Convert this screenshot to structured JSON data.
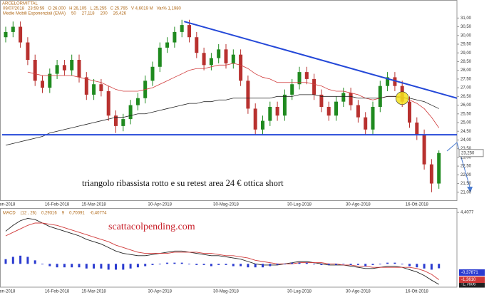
{
  "chart_data": [
    {
      "type": "candlestick",
      "title": "ARCELORMITTAL",
      "info": [
        "09/07/2018",
        "23:59:59",
        "O 26,000",
        "H 26,105",
        "L 25,255",
        "C 25,765",
        "V 4,6019 M",
        "Var% 1,1980"
      ],
      "indicator": "Medie Mobili Esponenziali (EMA)",
      "annotation": "triangolo ribassista rotto e su retest area 24 € ottica short",
      "categories": [
        "Gen-2018",
        null,
        null,
        null,
        null,
        null,
        null,
        "16-Feb-2018",
        null,
        null,
        null,
        null,
        "15-Mar-2018",
        null,
        null,
        null,
        null,
        null,
        null,
        null,
        null,
        "30-Apr-2018",
        null,
        null,
        null,
        null,
        null,
        null,
        null,
        null,
        "30-Mag-2018",
        null,
        null,
        null,
        null,
        null,
        null,
        null,
        null,
        null,
        "30-Lug-2018",
        null,
        null,
        null,
        null,
        null,
        null,
        null,
        "30-Ago-2018",
        null,
        null,
        null,
        null,
        null,
        null,
        null,
        "16-Ott-2018",
        null,
        null,
        null
      ],
      "open": [
        29.9,
        30.2,
        30.5,
        29.6,
        28.6,
        27.4,
        27.0,
        27.8,
        28.3,
        28.0,
        28.6,
        27.6,
        26.6,
        27.2,
        26.8,
        25.4,
        24.8,
        25.2,
        26.0,
        26.4,
        27.4,
        28.2,
        29.3,
        29.6,
        30.2,
        30.6,
        29.9,
        29.0,
        28.3,
        28.7,
        29.2,
        28.4,
        28.9,
        27.4,
        25.8,
        24.6,
        25.1,
        25.9,
        25.4,
        26.6,
        27.2,
        27.9,
        27.5,
        26.6,
        25.9,
        25.4,
        26.2,
        26.7,
        26.0,
        25.3,
        24.6,
        25.9,
        27.1,
        27.6,
        27.1,
        26.2,
        25.0,
        24.3,
        22.6,
        21.5
      ],
      "high": [
        30.5,
        30.8,
        30.8,
        29.9,
        28.9,
        27.7,
        28.1,
        28.6,
        28.6,
        28.9,
        28.9,
        27.9,
        27.5,
        27.5,
        27.1,
        25.7,
        25.5,
        26.3,
        26.7,
        27.7,
        28.5,
        29.6,
        29.9,
        30.5,
        30.9,
        30.9,
        30.2,
        29.3,
        29.0,
        29.5,
        29.5,
        29.2,
        29.2,
        27.7,
        26.1,
        25.4,
        26.2,
        26.2,
        26.9,
        27.5,
        28.2,
        28.2,
        27.8,
        26.9,
        26.2,
        26.5,
        27.0,
        27.0,
        26.3,
        25.6,
        26.2,
        27.4,
        27.9,
        27.9,
        27.4,
        26.5,
        25.3,
        24.6,
        22.9,
        23.4
      ],
      "low": [
        29.6,
        29.9,
        29.3,
        28.3,
        27.1,
        26.7,
        26.7,
        27.5,
        27.7,
        27.7,
        27.3,
        26.3,
        26.3,
        26.5,
        25.1,
        24.4,
        24.5,
        24.9,
        25.7,
        26.1,
        27.1,
        27.9,
        29.0,
        29.3,
        29.9,
        29.6,
        28.7,
        28.0,
        28.0,
        28.4,
        28.1,
        28.1,
        27.1,
        25.5,
        24.3,
        24.3,
        24.8,
        25.1,
        25.1,
        26.3,
        26.9,
        27.2,
        26.3,
        25.6,
        25.1,
        25.1,
        25.9,
        25.7,
        25.0,
        24.3,
        24.3,
        25.6,
        26.8,
        26.8,
        25.9,
        24.7,
        24.0,
        22.3,
        21.0,
        21.2
      ],
      "close": [
        30.2,
        30.5,
        29.6,
        28.6,
        27.4,
        27.0,
        27.8,
        28.3,
        28.0,
        28.6,
        27.6,
        26.6,
        27.2,
        26.8,
        25.4,
        24.8,
        25.2,
        26.0,
        26.4,
        27.4,
        28.2,
        29.3,
        29.6,
        30.2,
        30.6,
        29.9,
        29.0,
        28.3,
        28.7,
        29.2,
        28.4,
        28.9,
        27.4,
        25.8,
        24.6,
        25.1,
        25.9,
        25.4,
        26.6,
        27.2,
        27.9,
        27.5,
        26.6,
        25.9,
        25.4,
        26.2,
        26.7,
        26.0,
        25.3,
        24.6,
        25.9,
        27.1,
        27.6,
        27.1,
        26.2,
        25.0,
        24.3,
        22.6,
        21.5,
        23.25
      ],
      "up_color": "#1f8a1f",
      "down_color": "#b8312f",
      "price_label": {
        "value": 23.25,
        "label": "23,250"
      },
      "series": [
        {
          "name": "50",
          "legend_value": "27,118",
          "color": "#d03a3a",
          "values": [
            null,
            null,
            null,
            27.9,
            27.8,
            27.7,
            27.7,
            27.7,
            27.7,
            27.7,
            27.6,
            27.5,
            27.4,
            27.3,
            27.1,
            26.9,
            26.8,
            26.8,
            26.8,
            26.9,
            27.0,
            27.2,
            27.4,
            27.6,
            27.8,
            28.0,
            28.1,
            28.1,
            28.2,
            28.3,
            28.3,
            28.4,
            28.3,
            28.1,
            27.8,
            27.6,
            27.5,
            27.3,
            27.3,
            27.3,
            27.3,
            27.3,
            27.2,
            27.1,
            26.9,
            26.8,
            26.8,
            26.7,
            26.6,
            26.4,
            26.3,
            26.4,
            26.5,
            26.5,
            26.5,
            26.3,
            26.1,
            25.8,
            25.3,
            24.7
          ]
        },
        {
          "name": "200",
          "legend_value": "26,426",
          "color": "#222222",
          "values": [
            23.7,
            23.8,
            23.9,
            24.0,
            24.1,
            24.2,
            24.4,
            24.5,
            24.6,
            24.7,
            24.8,
            24.9,
            25.0,
            25.1,
            25.2,
            25.3,
            25.3,
            25.4,
            25.5,
            25.5,
            25.6,
            25.7,
            25.8,
            25.9,
            26.0,
            26.1,
            26.1,
            26.2,
            26.2,
            26.3,
            26.3,
            26.4,
            26.4,
            26.4,
            26.4,
            26.4,
            26.4,
            26.5,
            26.5,
            26.5,
            26.6,
            26.6,
            26.6,
            26.5,
            26.5,
            26.5,
            26.5,
            26.5,
            26.4,
            26.4,
            26.4,
            26.4,
            26.5,
            26.5,
            26.4,
            26.4,
            26.3,
            26.2,
            26.0,
            25.8
          ]
        }
      ],
      "trendlines": [
        {
          "x": [
            24.3,
            61.6
          ],
          "values": [
            30.8,
            26.4
          ],
          "color": "#2448d8"
        },
        {
          "x": [
            -0.5,
            61.6
          ],
          "values": [
            24.3,
            24.3
          ],
          "color": "#2448d8"
        }
      ],
      "marker": {
        "x": 54,
        "value": 26.4,
        "color": "#f3e01c"
      },
      "ylim": [
        20.5,
        31.3
      ],
      "yticks": [
        {
          "value": 21,
          "label": "21,00"
        },
        {
          "value": 21.5,
          "label": "21,50"
        },
        {
          "value": 22,
          "label": "22,00"
        },
        {
          "value": 22.5,
          "label": "22,50"
        },
        {
          "value": 23,
          "label": "23,00"
        },
        {
          "value": 23.5,
          "label": "23,50"
        },
        {
          "value": 24,
          "label": "24,00"
        },
        {
          "value": 24.5,
          "label": "24,50"
        },
        {
          "value": 25,
          "label": "25,00"
        },
        {
          "value": 25.5,
          "label": "25,50"
        },
        {
          "value": 26,
          "label": "26,00"
        },
        {
          "value": 26.5,
          "label": "26,50"
        },
        {
          "value": 27,
          "label": "27,00"
        },
        {
          "value": 27.5,
          "label": "27,50"
        },
        {
          "value": 28,
          "label": "28,00"
        },
        {
          "value": 28.5,
          "label": "28,50"
        },
        {
          "value": 29,
          "label": "29,00"
        },
        {
          "value": 29.5,
          "label": "29,50"
        },
        {
          "value": 30,
          "label": "30,00"
        },
        {
          "value": 30.5,
          "label": "30,50"
        },
        {
          "value": 31,
          "label": "31,00"
        }
      ]
    },
    {
      "type": "macd",
      "legend": [
        "MACD",
        "(12 , 26)",
        "0,29316",
        "9",
        "0,70091",
        "-0,40774"
      ],
      "watermark": "scattacolpending.com",
      "series": [
        {
          "name": "MACD",
          "color": "#222222",
          "label": "-1,7606",
          "style": "line",
          "values": [
            2.8,
            3.3,
            3.7,
            3.9,
            3.8,
            3.5,
            3.2,
            3.0,
            2.8,
            2.6,
            2.4,
            2.1,
            1.9,
            1.7,
            1.4,
            1.1,
            0.9,
            0.8,
            0.7,
            0.7,
            0.8,
            0.9,
            1.0,
            1.1,
            1.1,
            1.0,
            0.9,
            0.8,
            0.7,
            0.7,
            0.6,
            0.5,
            0.4,
            0.2,
            0.0,
            -0.1,
            -0.1,
            -0.1,
            0.0,
            0.1,
            0.2,
            0.2,
            0.1,
            0.0,
            -0.1,
            -0.1,
            -0.1,
            -0.2,
            -0.3,
            -0.4,
            -0.4,
            -0.3,
            -0.2,
            -0.2,
            -0.3,
            -0.5,
            -0.7,
            -1.0,
            -1.4,
            -1.7606
          ]
        },
        {
          "name": "9",
          "color": "#d03a3a",
          "label": "-1,3610",
          "style": "line",
          "values": [
            2.4,
            2.7,
            3.0,
            3.3,
            3.5,
            3.5,
            3.4,
            3.3,
            3.1,
            2.9,
            2.7,
            2.5,
            2.3,
            2.1,
            1.9,
            1.6,
            1.4,
            1.2,
            1.0,
            0.9,
            0.9,
            0.9,
            0.9,
            1.0,
            1.0,
            1.0,
            1.0,
            0.9,
            0.9,
            0.8,
            0.7,
            0.7,
            0.6,
            0.5,
            0.3,
            0.2,
            0.1,
            0.0,
            0.0,
            0.0,
            0.1,
            0.1,
            0.1,
            0.1,
            0.0,
            0.0,
            -0.1,
            -0.1,
            -0.2,
            -0.2,
            -0.3,
            -0.3,
            -0.3,
            -0.3,
            -0.3,
            -0.3,
            -0.4,
            -0.6,
            -0.9,
            -1.361
          ]
        },
        {
          "name": "Hist",
          "color": "#2b3bd0",
          "label": "-0,37871",
          "style": "histogram",
          "values": [
            0.4,
            0.6,
            0.7,
            0.6,
            0.3,
            0.0,
            -0.2,
            -0.3,
            -0.3,
            -0.3,
            -0.3,
            -0.4,
            -0.4,
            -0.4,
            -0.5,
            -0.5,
            -0.5,
            -0.4,
            -0.3,
            -0.2,
            -0.1,
            0.0,
            0.1,
            0.1,
            0.1,
            0.0,
            -0.1,
            -0.1,
            -0.2,
            -0.1,
            -0.1,
            -0.2,
            -0.2,
            -0.3,
            -0.3,
            -0.3,
            -0.2,
            -0.1,
            0.0,
            0.1,
            0.1,
            0.1,
            0.0,
            -0.1,
            -0.1,
            -0.1,
            0.0,
            -0.1,
            -0.1,
            -0.2,
            -0.1,
            0.0,
            0.1,
            0.1,
            0.0,
            -0.2,
            -0.3,
            -0.4,
            -0.5,
            -0.37871
          ]
        }
      ],
      "ylim": [
        -2.0,
        4.6
      ],
      "yticks": [
        {
          "value": 4.4077,
          "label": "4,4077"
        }
      ]
    }
  ]
}
